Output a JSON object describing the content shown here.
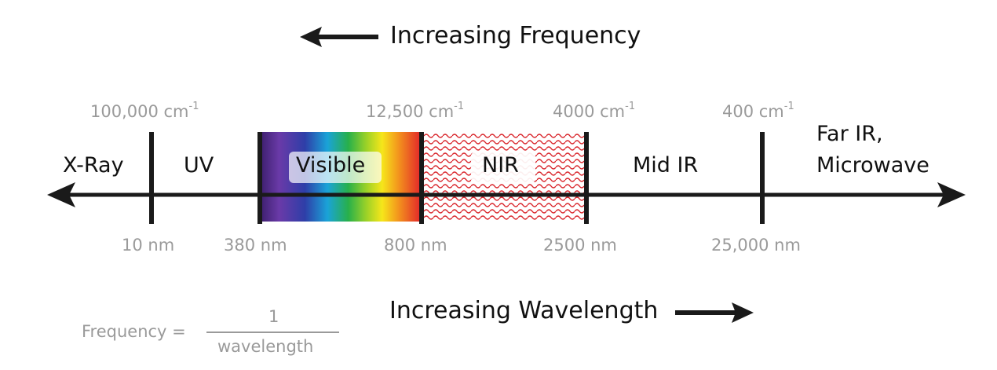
{
  "freq_title": "Increasing Frequency",
  "wave_title": "Increasing Wavelength",
  "wavenumbers": [
    {
      "value": "100,000 cm",
      "exp": "-1"
    },
    {
      "value": "12,500 cm",
      "exp": "-1"
    },
    {
      "value": "4000 cm",
      "exp": "-1"
    },
    {
      "value": "400 cm",
      "exp": "-1"
    }
  ],
  "wavelengths": [
    "10 nm",
    "380 nm",
    "800 nm",
    "2500 nm",
    "25,000 nm"
  ],
  "regions": {
    "xray": "X-Ray",
    "uv": "UV",
    "visible": "Visible",
    "nir": "NIR",
    "midir": "Mid IR",
    "far_line1": "Far IR,",
    "far_line2": "Microwave"
  },
  "formula": {
    "lhs": "Frequency =",
    "numerator": "1",
    "denominator": "wavelength"
  },
  "colors": {
    "axis": "#1a1a1a",
    "label_gray": "#9a9a9a",
    "nir_pattern": "#d9252b"
  }
}
